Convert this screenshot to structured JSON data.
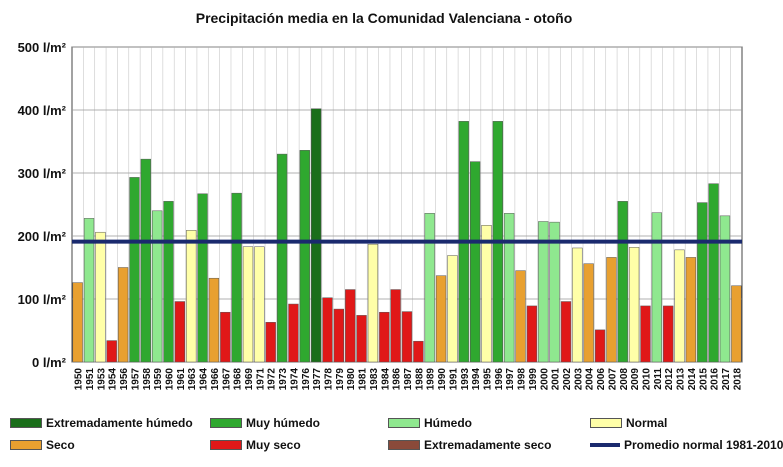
{
  "chart_data": {
    "type": "bar",
    "title": "Precipitación media en la Comunidad Valenciana - otoño",
    "ylim": [
      0,
      500
    ],
    "yticks": [
      0,
      100,
      200,
      300,
      400,
      500
    ],
    "ytick_labels": [
      "0 l/m²",
      "100 l/m²",
      "200 l/m²",
      "300 l/m²",
      "400 l/m²",
      "500 l/m²"
    ],
    "categories": [
      "1950",
      "1951",
      "1953",
      "1954",
      "1956",
      "1957",
      "1958",
      "1959",
      "1960",
      "1961",
      "1963",
      "1964",
      "1966",
      "1967",
      "1968",
      "1969",
      "1971",
      "1972",
      "1973",
      "1974",
      "1976",
      "1977",
      "1978",
      "1979",
      "1980",
      "1981",
      "1983",
      "1984",
      "1986",
      "1987",
      "1988",
      "1989",
      "1990",
      "1991",
      "1993",
      "1994",
      "1995",
      "1996",
      "1997",
      "1998",
      "1999",
      "2000",
      "2001",
      "2002",
      "2003",
      "2004",
      "2006",
      "2007",
      "2008",
      "2009",
      "2010",
      "2011",
      "2012",
      "2013",
      "2014",
      "2015",
      "2016",
      "2017",
      "2018"
    ],
    "values": [
      126,
      228,
      206,
      34,
      150,
      293,
      322,
      240,
      255,
      96,
      209,
      267,
      133,
      79,
      268,
      183,
      183,
      63,
      330,
      92,
      336,
      402,
      102,
      84,
      115,
      74,
      187,
      79,
      115,
      80,
      33,
      236,
      137,
      169,
      382,
      318,
      217,
      382,
      236,
      145,
      89,
      223,
      222,
      96,
      181,
      156,
      51,
      166,
      255,
      182,
      89,
      237,
      89,
      178,
      166,
      253,
      283,
      232,
      121
    ],
    "categories_note": "",
    "classes": [
      "seco",
      "humedo",
      "normal",
      "muy_seco",
      "seco",
      "muy_humedo",
      "muy_humedo",
      "humedo",
      "muy_humedo",
      "muy_seco",
      "normal",
      "muy_humedo",
      "seco",
      "muy_seco",
      "muy_humedo",
      "normal",
      "normal",
      "muy_seco",
      "muy_humedo",
      "muy_seco",
      "muy_humedo",
      "ext_humedo",
      "muy_seco",
      "muy_seco",
      "muy_seco",
      "muy_seco",
      "normal",
      "muy_seco",
      "muy_seco",
      "muy_seco",
      "muy_seco",
      "humedo",
      "seco",
      "normal",
      "muy_humedo",
      "muy_humedo",
      "normal",
      "muy_humedo",
      "humedo",
      "seco",
      "muy_seco",
      "humedo",
      "humedo",
      "muy_seco",
      "normal",
      "seco",
      "muy_seco",
      "seco",
      "muy_humedo",
      "normal",
      "muy_seco",
      "humedo",
      "muy_seco",
      "normal",
      "seco",
      "muy_humedo",
      "muy_humedo",
      "humedo",
      "seco"
    ],
    "reference_line": {
      "name": "Promedio normal 1981-2010",
      "value": 191
    },
    "legend": [
      {
        "key": "ext_humedo",
        "label": "Extremadamente húmedo",
        "color": "#1a6e1a"
      },
      {
        "key": "muy_humedo",
        "label": "Muy húmedo",
        "color": "#2fa82f"
      },
      {
        "key": "humedo",
        "label": "Húmedo",
        "color": "#8fe88f"
      },
      {
        "key": "normal",
        "label": "Normal",
        "color": "#ffffa8"
      },
      {
        "key": "seco",
        "label": "Seco",
        "color": "#e8a030"
      },
      {
        "key": "muy_seco",
        "label": "Muy seco",
        "color": "#e01818"
      },
      {
        "key": "ext_seco",
        "label": "Extremadamente seco",
        "color": "#8a4a3a"
      },
      {
        "key": "promedio",
        "label": "Promedio normal 1981-2010",
        "color": "#1a2a6e"
      }
    ],
    "grid": true
  }
}
